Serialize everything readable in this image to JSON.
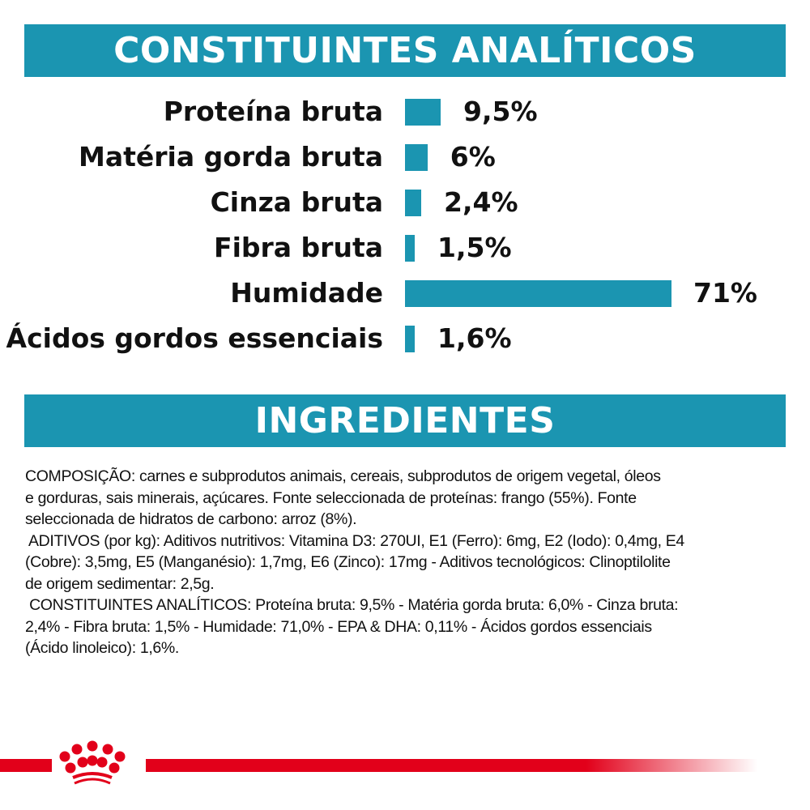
{
  "sections": {
    "analytical_title": "CONSTITUINTES ANALÍTICOS",
    "ingredients_title": "INGREDIENTES"
  },
  "colors": {
    "accent": "#1b95b1",
    "brand_red": "#e2001a"
  },
  "chart_data": {
    "type": "bar",
    "orientation": "horizontal",
    "title": "CONSTITUINTES ANALÍTICOS",
    "categories": [
      "Proteína bruta",
      "Matéria gorda bruta",
      "Cinza bruta",
      "Fibra bruta",
      "Humidade",
      "Ácidos gordos essenciais"
    ],
    "values": [
      9.5,
      6,
      2.4,
      1.5,
      71,
      1.6
    ],
    "labels": [
      "9,5%",
      "6%",
      "2,4%",
      "1,5%",
      "71%",
      "1,6%"
    ],
    "unit": "%",
    "grid": false
  },
  "ingredients": {
    "lines": [
      "COMPOSIÇÃO: carnes e subprodutos animais, cereais, subprodutos de origem vegetal, óleos",
      "e gorduras, sais minerais, açúcares. Fonte seleccionada de proteínas: frango (55%). Fonte",
      "seleccionada de hidratos de carbono: arroz (8%).",
      " ADITIVOS (por kg): Aditivos nutritivos: Vitamina D3: 270UI, E1 (Ferro): 6mg, E2 (Iodo): 0,4mg, E4",
      "(Cobre): 3,5mg, E5 (Manganésio): 1,7mg, E6 (Zinco): 17mg - Aditivos tecnológicos: Clinoptilolite",
      "de origem sedimentar: 2,5g.",
      " CONSTITUINTES ANALÍTICOS: Proteína bruta: 9,5% - Matéria gorda bruta: 6,0% - Cinza bruta:",
      "2,4% - Fibra bruta: 1,5% - Humidade: 71,0% - EPA & DHA: 0,11% - Ácidos gordos essenciais",
      "(Ácido linoleico): 1,6%."
    ]
  },
  "footer": {
    "logo_icon": "royal-crown-icon"
  }
}
